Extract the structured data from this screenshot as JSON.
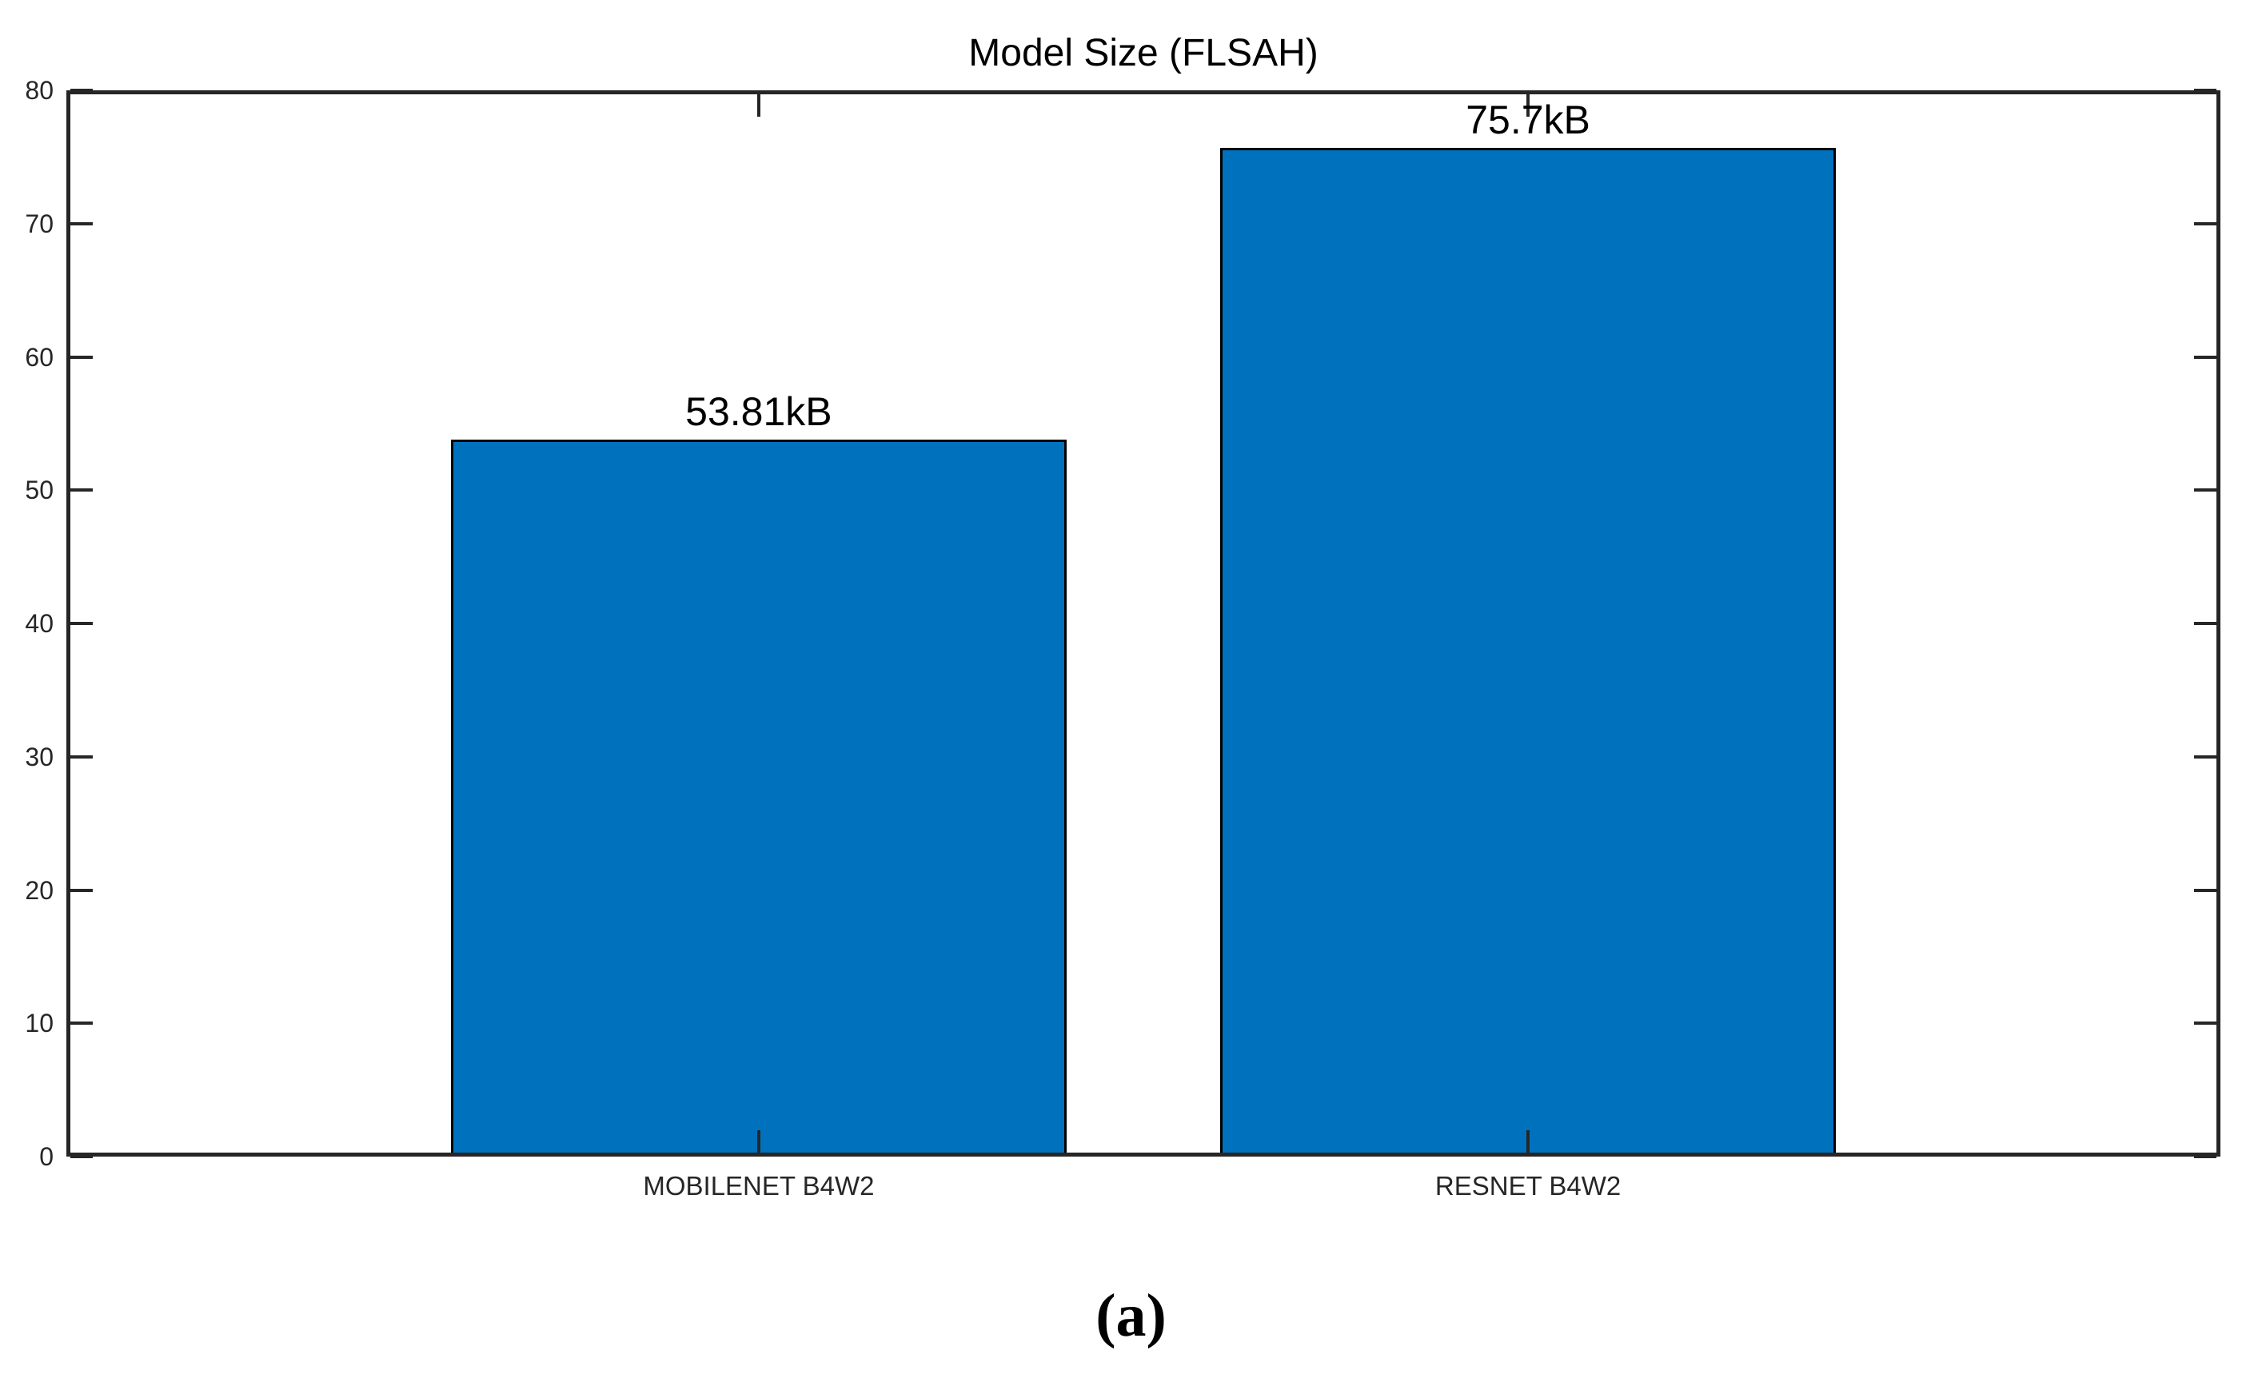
{
  "figure": {
    "caption": "(a)"
  },
  "chart_data": {
    "type": "bar",
    "title": "Model Size (FLSAH)",
    "categories": [
      "MOBILENET B4W2",
      "RESNET B4W2"
    ],
    "values": [
      53.81,
      75.7
    ],
    "value_labels": [
      "53.81kB",
      "75.7kB"
    ],
    "xlabel": "",
    "ylabel": "",
    "ylim": [
      0,
      80
    ],
    "yticks": [
      0,
      10,
      20,
      30,
      40,
      50,
      60,
      70,
      80
    ],
    "xlim": [
      0.1,
      2.9
    ],
    "bar_width_units": 0.8,
    "bar_color": "#0072BD",
    "bar_edge_color": "#000000",
    "axis_color": "#262626",
    "grid": false,
    "legend": null
  }
}
